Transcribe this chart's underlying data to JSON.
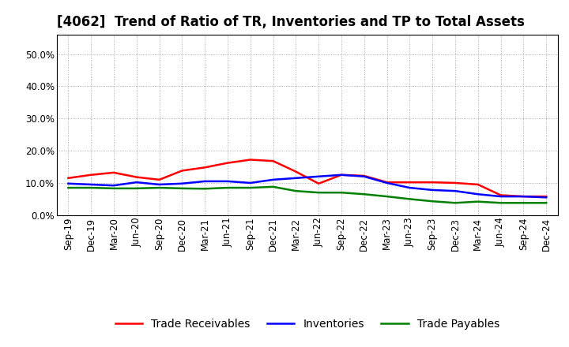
{
  "title": "[4062]  Trend of Ratio of TR, Inventories and TP to Total Assets",
  "x_labels": [
    "Sep-19",
    "Dec-19",
    "Mar-20",
    "Jun-20",
    "Sep-20",
    "Dec-20",
    "Mar-21",
    "Jun-21",
    "Sep-21",
    "Dec-21",
    "Mar-22",
    "Jun-22",
    "Sep-22",
    "Dec-22",
    "Mar-23",
    "Jun-23",
    "Sep-23",
    "Dec-23",
    "Mar-24",
    "Jun-24",
    "Sep-24",
    "Dec-24"
  ],
  "trade_receivables": [
    11.5,
    12.5,
    13.2,
    11.8,
    11.0,
    13.8,
    14.8,
    16.2,
    17.2,
    16.8,
    13.5,
    9.8,
    12.5,
    12.2,
    10.2,
    10.2,
    10.2,
    10.0,
    9.5,
    6.2,
    5.8,
    5.8
  ],
  "inventories": [
    9.8,
    9.5,
    9.2,
    10.2,
    9.5,
    9.8,
    10.5,
    10.5,
    10.0,
    11.0,
    11.5,
    12.0,
    12.5,
    12.0,
    10.0,
    8.5,
    7.8,
    7.5,
    6.5,
    5.8,
    5.8,
    5.5
  ],
  "trade_payables": [
    8.5,
    8.5,
    8.3,
    8.3,
    8.5,
    8.3,
    8.2,
    8.5,
    8.5,
    8.8,
    7.5,
    7.0,
    7.0,
    6.5,
    5.8,
    5.0,
    4.3,
    3.8,
    4.2,
    3.8,
    3.8,
    3.8
  ],
  "tr_color": "#ff0000",
  "inv_color": "#0000ff",
  "tp_color": "#008000",
  "ylim": [
    0,
    56
  ],
  "yticks": [
    0,
    10,
    20,
    30,
    40,
    50
  ],
  "background_color": "#ffffff",
  "plot_bg_color": "#ffffff",
  "grid_color": "#999999",
  "title_fontsize": 12,
  "legend_fontsize": 10,
  "tick_fontsize": 8.5,
  "line_width": 1.8
}
